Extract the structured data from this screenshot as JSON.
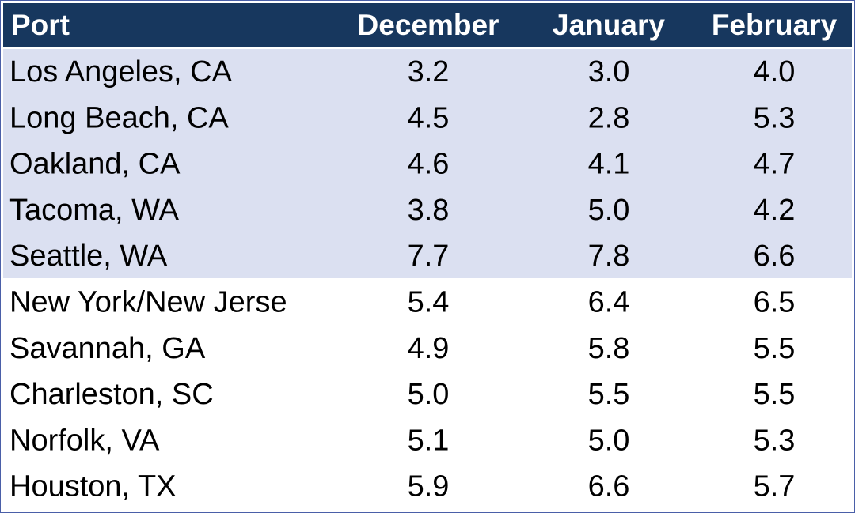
{
  "table": {
    "header": [
      "Port",
      "December",
      "January",
      "February"
    ],
    "rows": [
      [
        "Los Angeles, CA",
        "3.2",
        "3.0",
        "4.0"
      ],
      [
        "Long Beach, CA",
        "4.5",
        "2.8",
        "5.3"
      ],
      [
        "Oakland, CA",
        "4.6",
        "4.1",
        "4.7"
      ],
      [
        "Tacoma, WA",
        "3.8",
        "5.0",
        "4.2"
      ],
      [
        "Seattle, WA",
        "7.7",
        "7.8",
        "6.6"
      ],
      [
        "New York/New Jerse",
        "5.4",
        "6.4",
        "6.5"
      ],
      [
        "Savannah, GA",
        "4.9",
        "5.8",
        "5.5"
      ],
      [
        "Charleston, SC",
        "5.0",
        "5.5",
        "5.5"
      ],
      [
        "Norfolk, VA",
        "5.1",
        "5.0",
        "5.3"
      ],
      [
        "Houston, TX",
        "5.9",
        "6.6",
        "5.7"
      ]
    ]
  }
}
